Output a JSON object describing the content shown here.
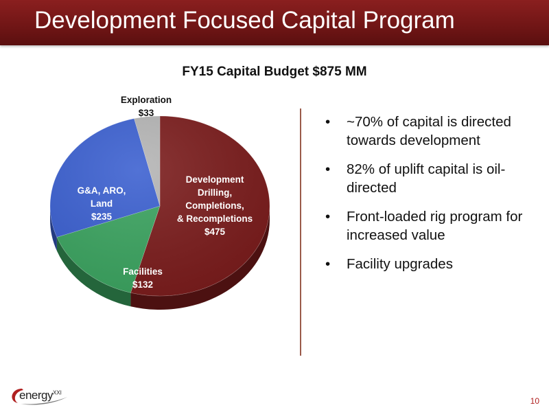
{
  "slide": {
    "title": "Development Focused Capital Program",
    "page_number": "10"
  },
  "logo": {
    "text": "energy",
    "suffix": "XXI"
  },
  "bullets": [
    "~70% of capital is directed towards development",
    "82% of uplift capital is oil-directed",
    "Front-loaded rig program for increased value",
    "Facility upgrades"
  ],
  "colors": {
    "title_bar": "#7a1a1a",
    "accent": "#b02020",
    "divider": "#9a5a4a"
  },
  "chart_data": {
    "type": "pie",
    "title": "FY15 Capital Budget $875 MM",
    "slices": [
      {
        "label_lines": [
          "Development",
          "Drilling,",
          "Completions,",
          "& Recompletions",
          "$475"
        ],
        "value": 475,
        "color": "#7a1b1b"
      },
      {
        "label_lines": [
          "Facilities",
          "$132"
        ],
        "value": 132,
        "color": "#3aa35f"
      },
      {
        "label_lines": [
          "G&A, ARO,",
          "Land",
          "$235"
        ],
        "value": 235,
        "color": "#3a5fd0"
      },
      {
        "label_lines": [
          "Exploration",
          "$33"
        ],
        "value": 33,
        "color": "#b4b4b4"
      }
    ]
  }
}
